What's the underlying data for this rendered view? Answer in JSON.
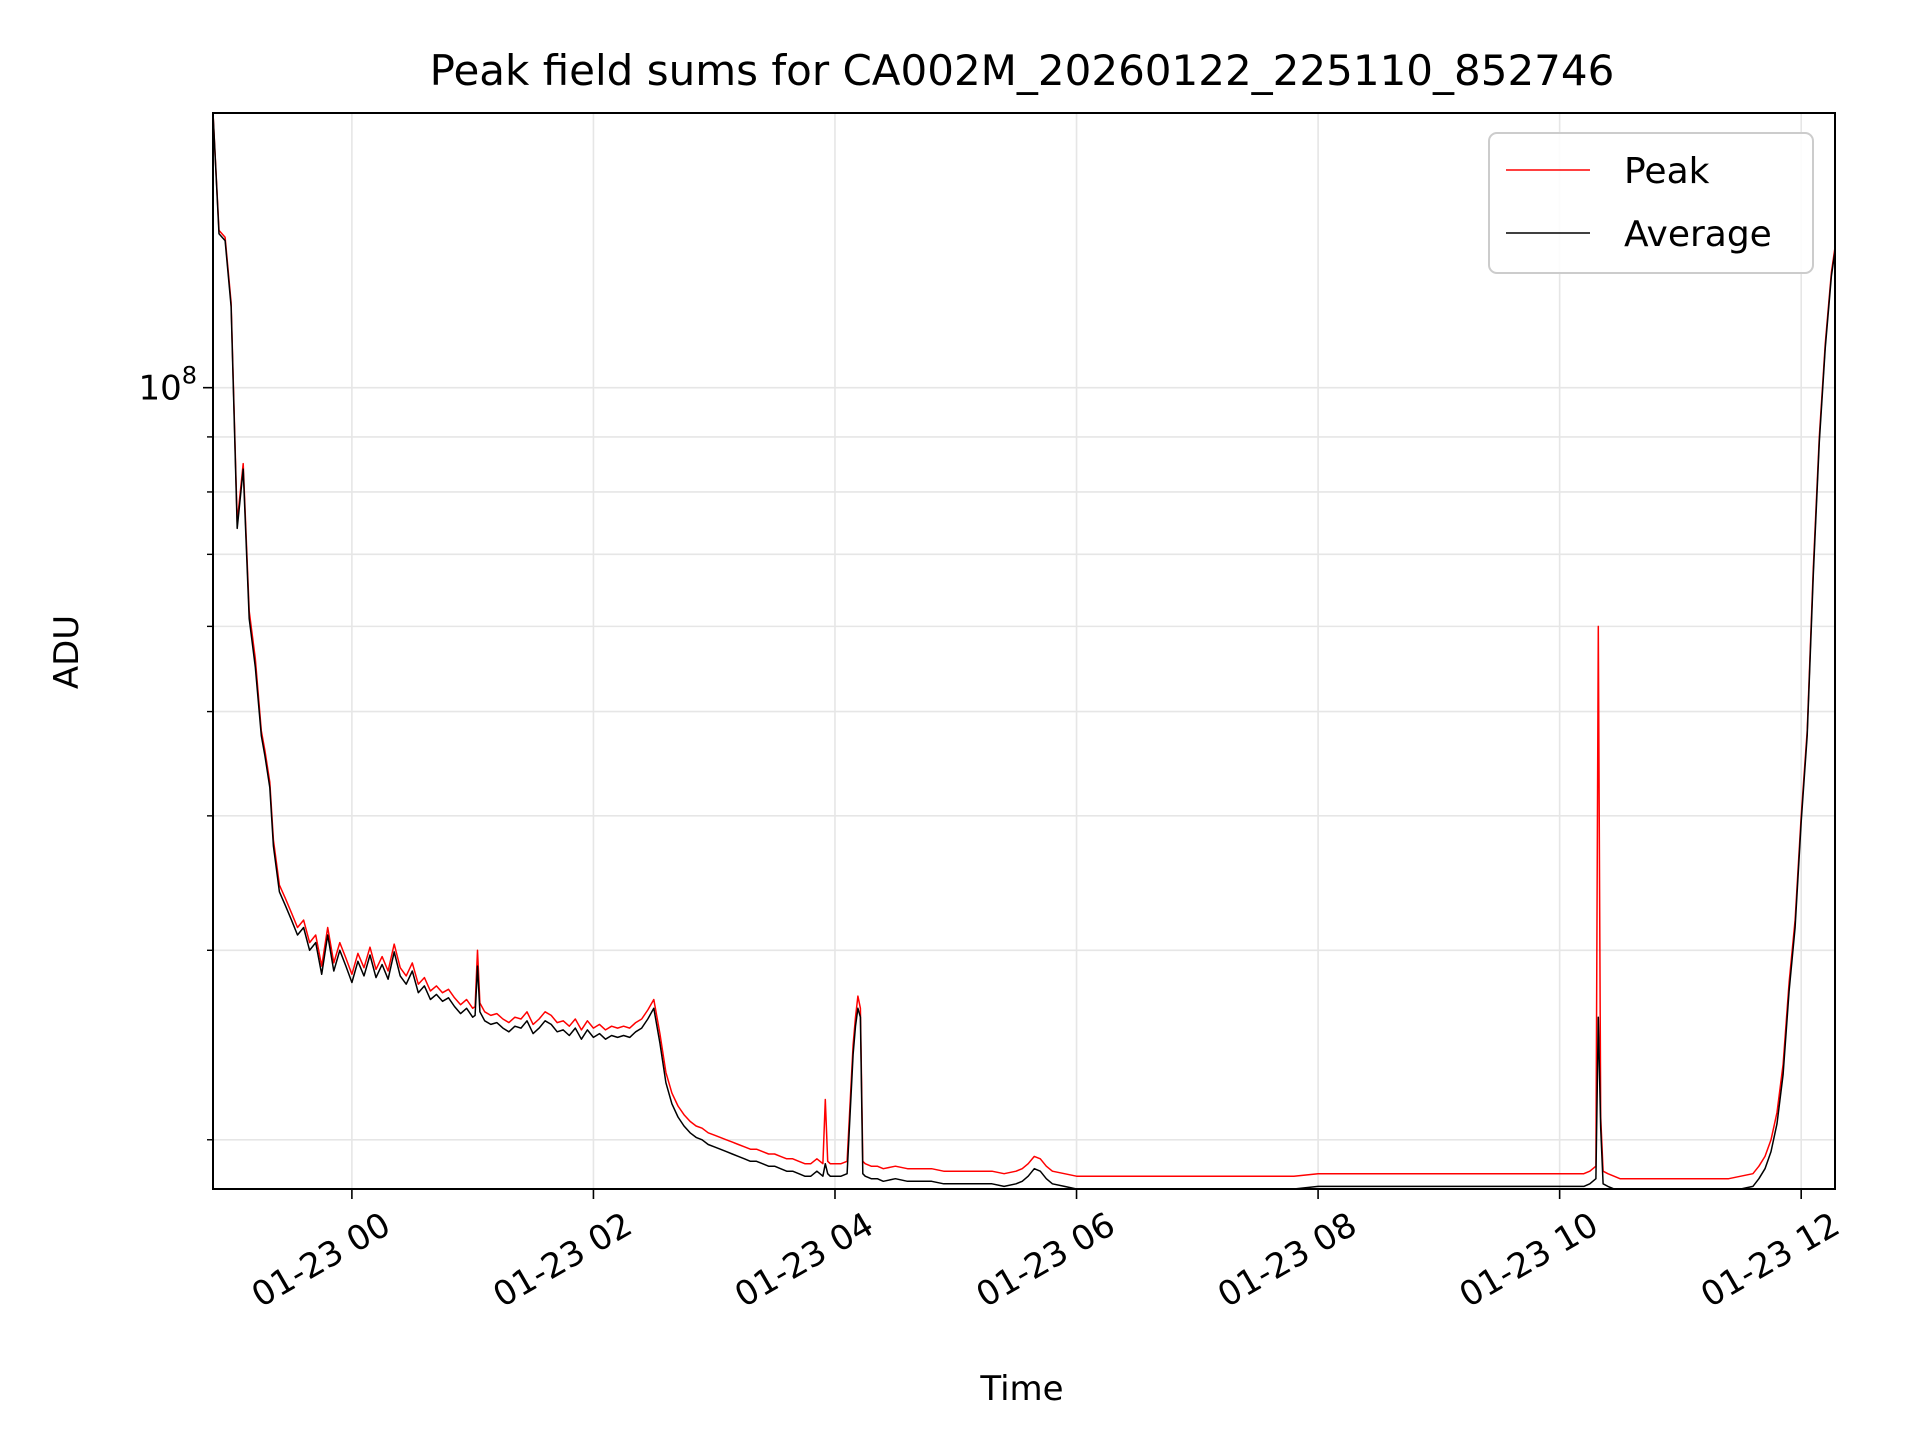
{
  "chart_data": {
    "type": "line",
    "title": "Peak field sums for CA002M_20260122_225110_852746",
    "xlabel": "Time",
    "ylabel": "ADU",
    "yscale": "log",
    "ylim": [
      18000000,
      180000000
    ],
    "xlim_hours": [
      -1.15,
      12.28
    ],
    "grid": true,
    "legend_position": "upper right",
    "x_ticks": [
      {
        "hour": 0,
        "label": "01-23 00"
      },
      {
        "hour": 2,
        "label": "01-23 02"
      },
      {
        "hour": 4,
        "label": "01-23 04"
      },
      {
        "hour": 6,
        "label": "01-23 06"
      },
      {
        "hour": 8,
        "label": "01-23 08"
      },
      {
        "hour": 10,
        "label": "01-23 10"
      },
      {
        "hour": 12,
        "label": "01-23 12"
      }
    ],
    "y_major_ticks": [
      {
        "value": 100000000,
        "base": "10",
        "exp": "8"
      }
    ],
    "y_minor_ticks": [
      20000000,
      30000000,
      40000000,
      50000000,
      60000000,
      70000000,
      80000000,
      90000000
    ],
    "series": [
      {
        "name": "Peak",
        "color": "#ff0000",
        "x": [
          -1.15,
          -1.1,
          -1.05,
          -1.0,
          -0.95,
          -0.9,
          -0.85,
          -0.8,
          -0.75,
          -0.72,
          -0.68,
          -0.65,
          -0.6,
          -0.55,
          -0.5,
          -0.45,
          -0.4,
          -0.35,
          -0.3,
          -0.25,
          -0.2,
          -0.15,
          -0.1,
          -0.05,
          0.0,
          0.05,
          0.1,
          0.15,
          0.2,
          0.25,
          0.3,
          0.35,
          0.4,
          0.45,
          0.5,
          0.55,
          0.6,
          0.65,
          0.7,
          0.75,
          0.8,
          0.85,
          0.9,
          0.95,
          1.0,
          1.02,
          1.04,
          1.06,
          1.1,
          1.15,
          1.2,
          1.25,
          1.3,
          1.35,
          1.4,
          1.45,
          1.5,
          1.55,
          1.6,
          1.65,
          1.7,
          1.75,
          1.8,
          1.85,
          1.9,
          1.95,
          2.0,
          2.05,
          2.1,
          2.15,
          2.2,
          2.25,
          2.3,
          2.35,
          2.4,
          2.45,
          2.5,
          2.55,
          2.6,
          2.65,
          2.7,
          2.75,
          2.8,
          2.85,
          2.9,
          2.95,
          3.0,
          3.05,
          3.1,
          3.15,
          3.2,
          3.25,
          3.3,
          3.35,
          3.4,
          3.45,
          3.5,
          3.55,
          3.6,
          3.65,
          3.7,
          3.75,
          3.8,
          3.85,
          3.9,
          3.92,
          3.94,
          3.96,
          4.0,
          4.05,
          4.1,
          4.15,
          4.17,
          4.19,
          4.21,
          4.23,
          4.25,
          4.3,
          4.35,
          4.4,
          4.5,
          4.6,
          4.7,
          4.8,
          4.9,
          5.0,
          5.1,
          5.2,
          5.3,
          5.4,
          5.5,
          5.55,
          5.6,
          5.65,
          5.7,
          5.75,
          5.8,
          5.9,
          6.0,
          6.2,
          6.4,
          6.6,
          6.8,
          7.0,
          7.2,
          7.4,
          7.6,
          7.8,
          8.0,
          8.2,
          8.4,
          8.6,
          8.8,
          9.0,
          9.2,
          9.4,
          9.6,
          9.8,
          10.0,
          10.1,
          10.2,
          10.25,
          10.3,
          10.32,
          10.34,
          10.36,
          10.4,
          10.45,
          10.5,
          10.6,
          10.7,
          10.8,
          10.9,
          11.0,
          11.1,
          11.2,
          11.3,
          11.4,
          11.5,
          11.6,
          11.65,
          11.7,
          11.75,
          11.8,
          11.85,
          11.9,
          11.95,
          12.0,
          12.05,
          12.1,
          12.15,
          12.2,
          12.25,
          12.28
        ],
        "y": [
          180000000,
          140000000,
          138000000,
          120000000,
          75000000,
          85000000,
          62000000,
          56000000,
          48000000,
          46000000,
          43000000,
          38000000,
          34500000,
          33500000,
          32500000,
          31500000,
          32000000,
          30500000,
          31000000,
          29000000,
          31500000,
          29200000,
          30500000,
          29500000,
          28500000,
          29800000,
          28900000,
          30200000,
          28800000,
          29600000,
          28700000,
          30400000,
          28900000,
          28400000,
          29200000,
          27900000,
          28300000,
          27500000,
          27800000,
          27400000,
          27600000,
          27100000,
          26700000,
          27000000,
          26500000,
          26600000,
          30000000,
          26800000,
          26300000,
          26100000,
          26200000,
          25900000,
          25700000,
          26000000,
          25900000,
          26300000,
          25600000,
          25900000,
          26300000,
          26100000,
          25700000,
          25800000,
          25500000,
          25900000,
          25300000,
          25800000,
          25400000,
          25600000,
          25300000,
          25500000,
          25400000,
          25500000,
          25400000,
          25700000,
          25900000,
          26400000,
          27000000,
          25100000,
          23100000,
          22100000,
          21500000,
          21100000,
          20800000,
          20600000,
          20500000,
          20300000,
          20200000,
          20100000,
          20000000,
          19900000,
          19800000,
          19700000,
          19600000,
          19600000,
          19500000,
          19400000,
          19400000,
          19300000,
          19200000,
          19200000,
          19100000,
          19000000,
          19000000,
          19200000,
          19000000,
          21800000,
          19100000,
          19000000,
          19000000,
          19000000,
          19100000,
          24500000,
          26000000,
          27200000,
          26500000,
          19100000,
          19000000,
          18900000,
          18900000,
          18800000,
          18900000,
          18800000,
          18800000,
          18800000,
          18700000,
          18700000,
          18700000,
          18700000,
          18700000,
          18600000,
          18700000,
          18800000,
          19000000,
          19300000,
          19200000,
          18900000,
          18700000,
          18600000,
          18500000,
          18500000,
          18500000,
          18500000,
          18500000,
          18500000,
          18500000,
          18500000,
          18500000,
          18500000,
          18600000,
          18600000,
          18600000,
          18600000,
          18600000,
          18600000,
          18600000,
          18600000,
          18600000,
          18600000,
          18600000,
          18600000,
          18600000,
          18700000,
          18900000,
          60000000,
          21000000,
          18700000,
          18600000,
          18500000,
          18400000,
          18400000,
          18400000,
          18400000,
          18400000,
          18400000,
          18400000,
          18400000,
          18400000,
          18400000,
          18500000,
          18600000,
          18900000,
          19300000,
          20000000,
          21200000,
          23500000,
          28000000,
          32000000,
          40000000,
          48000000,
          68000000,
          90000000,
          110000000,
          128000000,
          135000000
        ]
      },
      {
        "name": "Average",
        "color": "#000000",
        "x": [
          -1.15,
          -1.1,
          -1.05,
          -1.0,
          -0.95,
          -0.9,
          -0.85,
          -0.8,
          -0.75,
          -0.72,
          -0.68,
          -0.65,
          -0.6,
          -0.55,
          -0.5,
          -0.45,
          -0.4,
          -0.35,
          -0.3,
          -0.25,
          -0.2,
          -0.15,
          -0.1,
          -0.05,
          0.0,
          0.05,
          0.1,
          0.15,
          0.2,
          0.25,
          0.3,
          0.35,
          0.4,
          0.45,
          0.5,
          0.55,
          0.6,
          0.65,
          0.7,
          0.75,
          0.8,
          0.85,
          0.9,
          0.95,
          1.0,
          1.02,
          1.04,
          1.06,
          1.1,
          1.15,
          1.2,
          1.25,
          1.3,
          1.35,
          1.4,
          1.45,
          1.5,
          1.55,
          1.6,
          1.65,
          1.7,
          1.75,
          1.8,
          1.85,
          1.9,
          1.95,
          2.0,
          2.05,
          2.1,
          2.15,
          2.2,
          2.25,
          2.3,
          2.35,
          2.4,
          2.45,
          2.5,
          2.55,
          2.6,
          2.65,
          2.7,
          2.75,
          2.8,
          2.85,
          2.9,
          2.95,
          3.0,
          3.05,
          3.1,
          3.15,
          3.2,
          3.25,
          3.3,
          3.35,
          3.4,
          3.45,
          3.5,
          3.55,
          3.6,
          3.65,
          3.7,
          3.75,
          3.8,
          3.85,
          3.9,
          3.92,
          3.94,
          3.96,
          4.0,
          4.05,
          4.1,
          4.15,
          4.17,
          4.19,
          4.21,
          4.23,
          4.25,
          4.3,
          4.35,
          4.4,
          4.5,
          4.6,
          4.7,
          4.8,
          4.9,
          5.0,
          5.1,
          5.2,
          5.3,
          5.4,
          5.5,
          5.55,
          5.6,
          5.65,
          5.7,
          5.75,
          5.8,
          5.9,
          6.0,
          6.2,
          6.4,
          6.6,
          6.8,
          7.0,
          7.2,
          7.4,
          7.6,
          7.8,
          8.0,
          8.2,
          8.4,
          8.6,
          8.8,
          9.0,
          9.2,
          9.4,
          9.6,
          9.8,
          10.0,
          10.1,
          10.2,
          10.25,
          10.3,
          10.32,
          10.34,
          10.36,
          10.4,
          10.45,
          10.5,
          10.6,
          10.7,
          10.8,
          10.9,
          11.0,
          11.1,
          11.2,
          11.3,
          11.4,
          11.5,
          11.6,
          11.65,
          11.7,
          11.75,
          11.8,
          11.85,
          11.9,
          11.95,
          12.0,
          12.05,
          12.1,
          12.15,
          12.2,
          12.25,
          12.28
        ],
        "y": [
          180000000,
          139000000,
          137000000,
          119000000,
          74000000,
          84000000,
          61000000,
          55000000,
          47500000,
          45500000,
          42500000,
          37500000,
          34000000,
          33000000,
          32000000,
          31000000,
          31500000,
          30000000,
          30500000,
          28500000,
          31000000,
          28700000,
          30000000,
          29000000,
          28000000,
          29300000,
          28400000,
          29700000,
          28300000,
          29100000,
          28200000,
          29900000,
          28400000,
          27900000,
          28700000,
          27400000,
          27800000,
          27000000,
          27300000,
          26900000,
          27100000,
          26600000,
          26200000,
          26500000,
          26000000,
          26100000,
          29000000,
          26300000,
          25800000,
          25600000,
          25700000,
          25400000,
          25200000,
          25500000,
          25400000,
          25800000,
          25100000,
          25400000,
          25800000,
          25600000,
          25200000,
          25300000,
          25000000,
          25400000,
          24800000,
          25300000,
          24900000,
          25100000,
          24800000,
          25000000,
          24900000,
          25000000,
          24900000,
          25200000,
          25400000,
          25900000,
          26500000,
          24600000,
          22600000,
          21600000,
          21000000,
          20600000,
          20300000,
          20100000,
          20000000,
          19800000,
          19700000,
          19600000,
          19500000,
          19400000,
          19300000,
          19200000,
          19100000,
          19100000,
          19000000,
          18900000,
          18900000,
          18800000,
          18700000,
          18700000,
          18600000,
          18500000,
          18500000,
          18700000,
          18500000,
          19000000,
          18600000,
          18500000,
          18500000,
          18500000,
          18600000,
          24000000,
          25500000,
          26500000,
          26000000,
          18600000,
          18500000,
          18400000,
          18400000,
          18300000,
          18400000,
          18300000,
          18300000,
          18300000,
          18200000,
          18200000,
          18200000,
          18200000,
          18200000,
          18100000,
          18200000,
          18300000,
          18500000,
          18800000,
          18700000,
          18400000,
          18200000,
          18100000,
          18000000,
          18000000,
          18000000,
          18000000,
          18000000,
          18000000,
          18000000,
          18000000,
          18000000,
          18000000,
          18100000,
          18100000,
          18100000,
          18100000,
          18100000,
          18100000,
          18100000,
          18100000,
          18100000,
          18100000,
          18100000,
          18100000,
          18100000,
          18200000,
          18400000,
          26000000,
          20500000,
          18200000,
          18100000,
          18000000,
          17900000,
          17900000,
          17900000,
          17900000,
          17900000,
          17900000,
          17900000,
          17900000,
          17900000,
          17900000,
          18000000,
          18100000,
          18400000,
          18800000,
          19500000,
          20700000,
          23000000,
          27500000,
          31500000,
          39500000,
          47500000,
          67000000,
          89000000,
          109000000,
          127000000,
          134000000
        ]
      }
    ]
  }
}
